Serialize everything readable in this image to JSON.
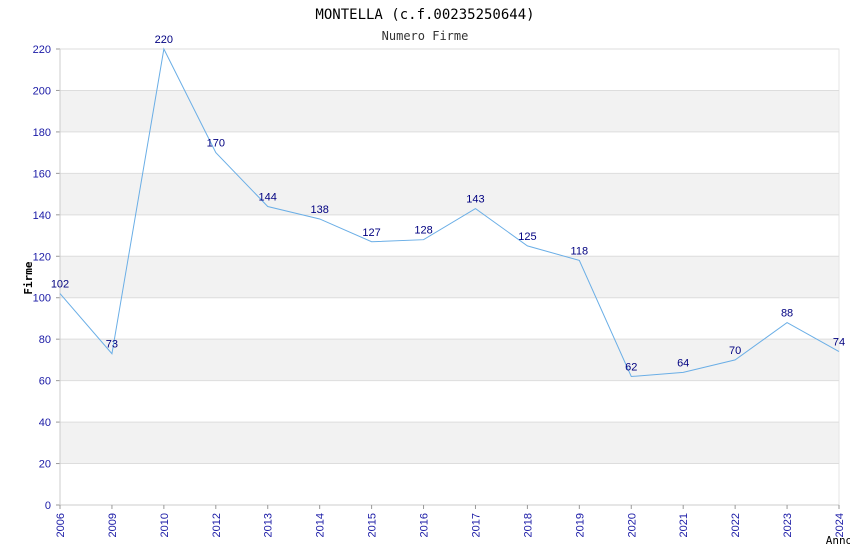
{
  "chart_data": {
    "type": "line",
    "title": "MONTELLA (c.f.00235250644)",
    "subtitle": "Numero Firme",
    "xlabel": "Anno",
    "ylabel": "Firme",
    "categories": [
      "2006",
      "2009",
      "2010",
      "2012",
      "2013",
      "2014",
      "2015",
      "2016",
      "2017",
      "2018",
      "2019",
      "2020",
      "2021",
      "2022",
      "2023",
      "2024"
    ],
    "series": [
      {
        "values": [
          102,
          73,
          220,
          170,
          144,
          138,
          127,
          128,
          143,
          125,
          118,
          62,
          64,
          70,
          88,
          74
        ]
      }
    ],
    "ylim": [
      0,
      220
    ],
    "yticks": [
      0,
      20,
      40,
      60,
      80,
      100,
      120,
      140,
      160,
      180,
      200,
      220
    ],
    "grid": true,
    "legend": "none",
    "colors": {
      "line": "#6aaee6",
      "tick_text": "#1a1aa6",
      "label_text": "#000080",
      "band": "#f2f2f2",
      "gridline": "#dddddd"
    }
  }
}
